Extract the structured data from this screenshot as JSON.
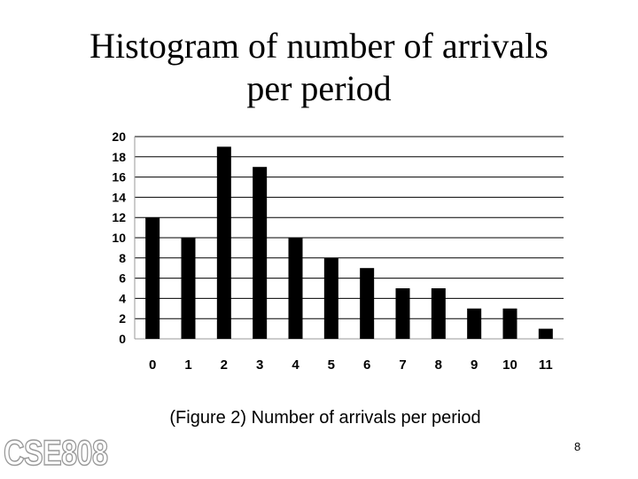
{
  "slide": {
    "title_line1": "Histogram of number of arrivals",
    "title_line2": "per period",
    "caption": "(Figure 2) Number of arrivals per period",
    "page_number": "8",
    "logo_text": "CSE808"
  },
  "chart_data": {
    "type": "bar",
    "categories": [
      "0",
      "1",
      "2",
      "3",
      "4",
      "5",
      "6",
      "7",
      "8",
      "9",
      "10",
      "11"
    ],
    "values": [
      12,
      10,
      19,
      17,
      10,
      8,
      7,
      5,
      5,
      3,
      3,
      1
    ],
    "ylim": [
      0,
      20
    ],
    "yticks": [
      "0",
      "2",
      "4",
      "6",
      "8",
      "10",
      "12",
      "14",
      "16",
      "18",
      "20"
    ],
    "grid": true,
    "legend": false,
    "bar_color": "#000000"
  }
}
